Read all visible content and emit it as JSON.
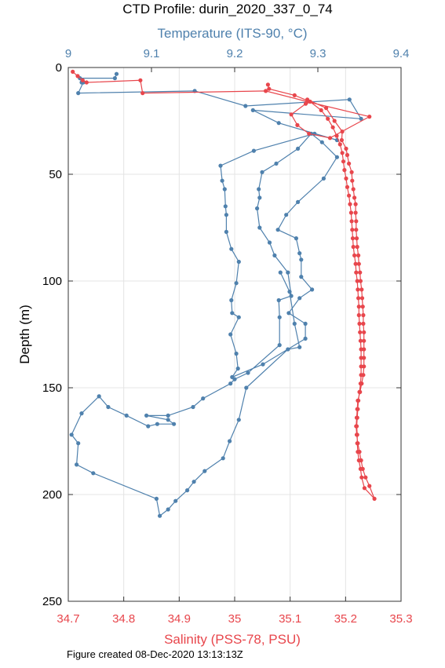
{
  "chart_data": {
    "type": "line",
    "title": "CTD Profile: durin_2020_337_0_74",
    "footer": "Figure created 08-Dec-2020 13:13:13Z",
    "ylabel": "Depth (m)",
    "ylim": [
      0,
      250
    ],
    "y_inverted": true,
    "y_ticks": [
      "0",
      "50",
      "100",
      "150",
      "200",
      "250"
    ],
    "grid": true,
    "top_axis": {
      "label": "Temperature (ITS-90, °C)",
      "range": [
        9.0,
        9.4
      ],
      "ticks": [
        "9",
        "9.1",
        "9.2",
        "9.3",
        "9.4"
      ],
      "color": "#4f81ad"
    },
    "bottom_axis": {
      "label": "Salinity (PSS-78, PSU)",
      "range": [
        34.7,
        35.3
      ],
      "ticks": [
        "34.7",
        "34.8",
        "34.9",
        "35",
        "35.1",
        "35.2",
        "35.3"
      ],
      "color": "#e8464c"
    },
    "series": [
      {
        "quantity": "temperature",
        "axis": "top",
        "color": "#4f81ad",
        "points": [
          [
            9.058,
            3
          ],
          [
            9.056,
            5
          ],
          [
            9.014,
            5
          ],
          [
            9.016,
            7
          ],
          [
            9.018,
            7
          ],
          [
            9.012,
            12
          ],
          [
            9.152,
            11
          ],
          [
            9.213,
            18
          ],
          [
            9.338,
            15
          ],
          [
            9.352,
            24
          ],
          [
            9.222,
            20
          ],
          [
            9.253,
            26
          ],
          [
            9.323,
            34
          ],
          [
            9.296,
            31
          ],
          [
            9.223,
            39
          ],
          [
            9.183,
            46
          ],
          [
            9.185,
            53
          ],
          [
            9.188,
            57
          ],
          [
            9.189,
            65
          ],
          [
            9.19,
            69
          ],
          [
            9.19,
            77
          ],
          [
            9.196,
            85
          ],
          [
            9.205,
            91
          ],
          [
            9.202,
            101
          ],
          [
            9.196,
            109
          ],
          [
            9.197,
            115
          ],
          [
            9.205,
            117
          ],
          [
            9.195,
            125
          ],
          [
            9.202,
            134
          ],
          [
            9.204,
            141
          ],
          [
            9.197,
            145
          ],
          [
            9.234,
            139
          ],
          [
            9.285,
            127
          ],
          [
            9.285,
            120
          ],
          [
            9.265,
            115
          ],
          [
            9.278,
            108
          ],
          [
            9.293,
            104
          ],
          [
            9.28,
            98
          ],
          [
            9.28,
            90
          ],
          [
            9.278,
            87
          ],
          [
            9.274,
            80
          ],
          [
            9.252,
            76
          ],
          [
            9.262,
            69
          ],
          [
            9.276,
            63
          ],
          [
            9.307,
            52
          ],
          [
            9.323,
            42
          ],
          [
            9.305,
            35
          ],
          [
            9.292,
            31
          ],
          [
            9.276,
            38
          ],
          [
            9.25,
            45
          ],
          [
            9.233,
            49
          ],
          [
            9.229,
            57
          ],
          [
            9.23,
            61
          ],
          [
            9.227,
            66
          ],
          [
            9.23,
            75
          ],
          [
            9.242,
            82
          ],
          [
            9.248,
            88
          ],
          [
            9.264,
            96
          ],
          [
            9.268,
            107
          ],
          [
            9.253,
            109
          ],
          [
            9.254,
            117
          ],
          [
            9.254,
            130
          ],
          [
            9.216,
            143
          ],
          [
            9.2,
            146
          ],
          [
            9.195,
            148
          ],
          [
            9.162,
            155
          ],
          [
            9.15,
            159
          ],
          [
            9.12,
            163
          ],
          [
            9.094,
            163
          ],
          [
            9.12,
            165
          ],
          [
            9.127,
            167
          ],
          [
            9.107,
            167
          ],
          [
            9.096,
            168
          ],
          [
            9.07,
            163
          ],
          [
            9.048,
            159
          ],
          [
            9.037,
            154
          ],
          [
            9.016,
            162
          ],
          [
            9.004,
            172
          ],
          [
            9.012,
            176
          ],
          [
            9.01,
            186
          ],
          [
            9.03,
            190
          ],
          [
            9.106,
            202
          ],
          [
            9.11,
            210
          ],
          [
            9.12,
            207
          ],
          [
            9.129,
            203
          ],
          [
            9.143,
            198
          ],
          [
            9.151,
            194
          ],
          [
            9.164,
            189
          ],
          [
            9.186,
            183
          ],
          [
            9.194,
            175
          ],
          [
            9.205,
            165
          ],
          [
            9.214,
            150
          ],
          [
            9.264,
            132
          ],
          [
            9.278,
            131
          ],
          [
            9.272,
            120
          ],
          [
            9.266,
            105
          ],
          [
            9.255,
            96
          ]
        ]
      },
      {
        "quantity": "salinity",
        "axis": "bottom",
        "color": "#e8464c",
        "points": [
          [
            34.708,
            2
          ],
          [
            34.717,
            4
          ],
          [
            34.726,
            6
          ],
          [
            34.733,
            7
          ],
          [
            34.83,
            6
          ],
          [
            34.834,
            12
          ],
          [
            35.056,
            11
          ],
          [
            35.131,
            16
          ],
          [
            35.243,
            23
          ],
          [
            35.172,
            33
          ],
          [
            35.134,
            31
          ],
          [
            35.113,
            27
          ],
          [
            35.102,
            22
          ],
          [
            35.128,
            17
          ],
          [
            35.131,
            15
          ],
          [
            35.165,
            19
          ],
          [
            35.18,
            25
          ],
          [
            35.194,
            30
          ],
          [
            35.193,
            34
          ],
          [
            35.201,
            38
          ],
          [
            35.203,
            41
          ],
          [
            35.206,
            45
          ],
          [
            35.211,
            49
          ],
          [
            35.212,
            53
          ],
          [
            35.214,
            57
          ],
          [
            35.216,
            61
          ],
          [
            35.218,
            64
          ],
          [
            35.218,
            68
          ],
          [
            35.219,
            72
          ],
          [
            35.219,
            76
          ],
          [
            35.22,
            80
          ],
          [
            35.221,
            84
          ],
          [
            35.223,
            88
          ],
          [
            35.224,
            92
          ],
          [
            35.226,
            96
          ],
          [
            35.227,
            100
          ],
          [
            35.229,
            104
          ],
          [
            35.23,
            108
          ],
          [
            35.231,
            112
          ],
          [
            35.232,
            116
          ],
          [
            35.232,
            120
          ],
          [
            35.233,
            124
          ],
          [
            35.233,
            128
          ],
          [
            35.233,
            132
          ],
          [
            35.233,
            136
          ],
          [
            35.233,
            140
          ],
          [
            35.232,
            144
          ],
          [
            35.229,
            148
          ],
          [
            35.226,
            152
          ],
          [
            35.222,
            156
          ],
          [
            35.221,
            160
          ],
          [
            35.22,
            164
          ],
          [
            35.219,
            168
          ],
          [
            35.22,
            172
          ],
          [
            35.222,
            176
          ],
          [
            35.225,
            180
          ],
          [
            35.228,
            184
          ],
          [
            35.231,
            188
          ],
          [
            35.236,
            192
          ],
          [
            35.243,
            196
          ],
          [
            35.252,
            202
          ],
          [
            35.234,
            197
          ],
          [
            35.229,
            192
          ],
          [
            35.227,
            188
          ],
          [
            35.224,
            184
          ],
          [
            35.222,
            180
          ],
          [
            35.221,
            176
          ],
          [
            35.221,
            172
          ],
          [
            35.22,
            168
          ],
          [
            35.221,
            164
          ],
          [
            35.222,
            160
          ],
          [
            35.223,
            156
          ],
          [
            35.225,
            152
          ],
          [
            35.227,
            148
          ],
          [
            35.228,
            144
          ],
          [
            35.228,
            140
          ],
          [
            35.228,
            136
          ],
          [
            35.228,
            132
          ],
          [
            35.227,
            128
          ],
          [
            35.226,
            124
          ],
          [
            35.225,
            120
          ],
          [
            35.224,
            116
          ],
          [
            35.224,
            112
          ],
          [
            35.223,
            108
          ],
          [
            35.222,
            104
          ],
          [
            35.221,
            100
          ],
          [
            35.219,
            96
          ],
          [
            35.218,
            92
          ],
          [
            35.216,
            88
          ],
          [
            35.214,
            84
          ],
          [
            35.213,
            80
          ],
          [
            35.212,
            76
          ],
          [
            35.211,
            72
          ],
          [
            35.21,
            68
          ],
          [
            35.208,
            64
          ],
          [
            35.206,
            60
          ],
          [
            35.203,
            56
          ],
          [
            35.201,
            52
          ],
          [
            35.198,
            48
          ],
          [
            35.196,
            44
          ],
          [
            35.194,
            40
          ],
          [
            35.19,
            36
          ],
          [
            35.184,
            32
          ],
          [
            35.177,
            28
          ],
          [
            35.168,
            24
          ],
          [
            35.156,
            20
          ],
          [
            35.136,
            16
          ],
          [
            35.108,
            13
          ],
          [
            35.062,
            10
          ],
          [
            35.06,
            8
          ]
        ]
      }
    ]
  }
}
